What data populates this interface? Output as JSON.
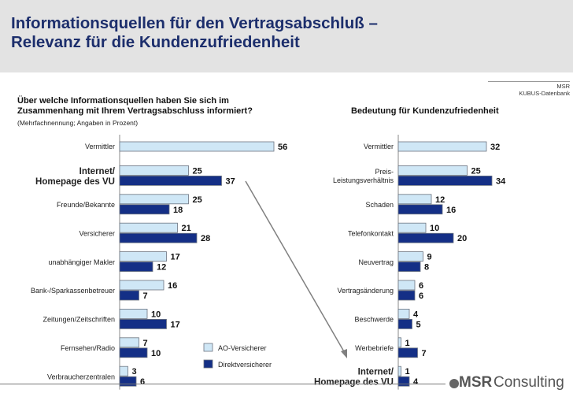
{
  "title": "Informationsquellen für den Vertragsabschluß –\nRelevanz für die Kundenzufriedenheit",
  "source": {
    "line1": "MSR",
    "line2": "KUBUS-Datenbank"
  },
  "brand": {
    "name_bold": "MSR",
    "name_rest": "Consulting"
  },
  "colors": {
    "ao": "#cfe7f6",
    "direkt": "#142f86",
    "outline": "#6c7480",
    "title": "#1c2e6c",
    "arrow": "#808080"
  },
  "chart_data": [
    {
      "type": "bar",
      "orientation": "horizontal",
      "title": "Über welche Informationsquellen haben Sie sich im\nZusammenhang mit Ihrem Vertragsabschluss informiert?",
      "subtitle": "(Mehrfachnennung; Angaben in Prozent)",
      "categories": [
        "Vermittler",
        "Internet/\nHomepage des VU",
        "Freunde/Bekannte",
        "Versicherer",
        "unabhängiger Makler",
        "Bank-/Sparkassenbetreuer",
        "Zeitungen/Zeitschriften",
        "Fernsehen/Radio",
        "Verbraucherzentralen"
      ],
      "series": [
        {
          "name": "AO-Versicherer",
          "values": [
            56,
            25,
            25,
            21,
            17,
            16,
            10,
            7,
            3
          ]
        },
        {
          "name": "Direktversicherer",
          "values": [
            null,
            37,
            18,
            28,
            12,
            7,
            17,
            10,
            6
          ]
        }
      ],
      "legend": "bottom-right",
      "grid": false
    },
    {
      "type": "bar",
      "orientation": "horizontal",
      "title": "Bedeutung für Kundenzufriedenheit",
      "categories": [
        "Vermittler",
        "Preis-\nLeistungsverhältnis",
        "Schaden",
        "Telefonkontakt",
        "Neuvertrag",
        "Vertragsänderung",
        "Beschwerde",
        "Werbebriefe",
        "Internet/\nHomepage des VU"
      ],
      "series": [
        {
          "name": "AO-Versicherer",
          "values": [
            32,
            25,
            12,
            10,
            9,
            6,
            4,
            1,
            1
          ]
        },
        {
          "name": "Direktversicherer",
          "values": [
            null,
            34,
            16,
            20,
            8,
            6,
            5,
            7,
            4
          ]
        }
      ],
      "grid": false
    }
  ]
}
